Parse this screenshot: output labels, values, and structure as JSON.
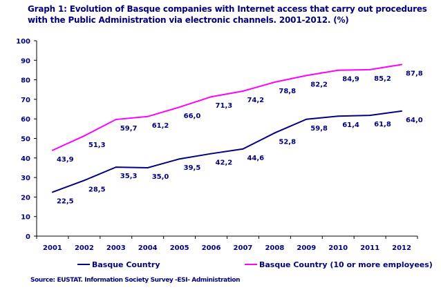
{
  "chart_data": {
    "type": "line",
    "title": "Graph 1: Evolution of Basque companies with Internet access that carry out procedures with the Public Administration via electronic channels. 2001-2012. (%)",
    "categories": [
      "2001",
      "2002",
      "2003",
      "2004",
      "2005",
      "2006",
      "2007",
      "2008",
      "2009",
      "2010",
      "2011",
      "2012"
    ],
    "series": [
      {
        "name": "Basque Country",
        "color": "#000080",
        "values": [
          22.5,
          28.5,
          35.3,
          35.0,
          39.5,
          42.2,
          44.6,
          52.8,
          59.8,
          61.4,
          61.8,
          64.0
        ],
        "labels": [
          "22,5",
          "28,5",
          "35,3",
          "35,0",
          "39,5",
          "42,2",
          "44,6",
          "52,8",
          "59,8",
          "61,4",
          "61,8",
          "64,0"
        ]
      },
      {
        "name": "Basque Country (10 or more employees)",
        "color": "#FF00FF",
        "values": [
          43.9,
          51.3,
          59.7,
          61.2,
          66.0,
          71.3,
          74.2,
          78.8,
          82.2,
          84.9,
          85.2,
          87.8
        ],
        "labels": [
          "43,9",
          "51,3",
          "59,7",
          "61,2",
          "66,0",
          "71,3",
          "74,2",
          "78,8",
          "82,2",
          "84,9",
          "85,2",
          "87,8"
        ]
      }
    ],
    "ylim": [
      0,
      100
    ],
    "yticks": [
      "0",
      "10",
      "20",
      "30",
      "40",
      "50",
      "60",
      "70",
      "80",
      "90",
      "100"
    ],
    "xlabel": "",
    "ylabel": "",
    "grid": false,
    "legend": "bottom",
    "source": "Source: EUSTAT. Information Society Survey -ESI- Administration"
  }
}
